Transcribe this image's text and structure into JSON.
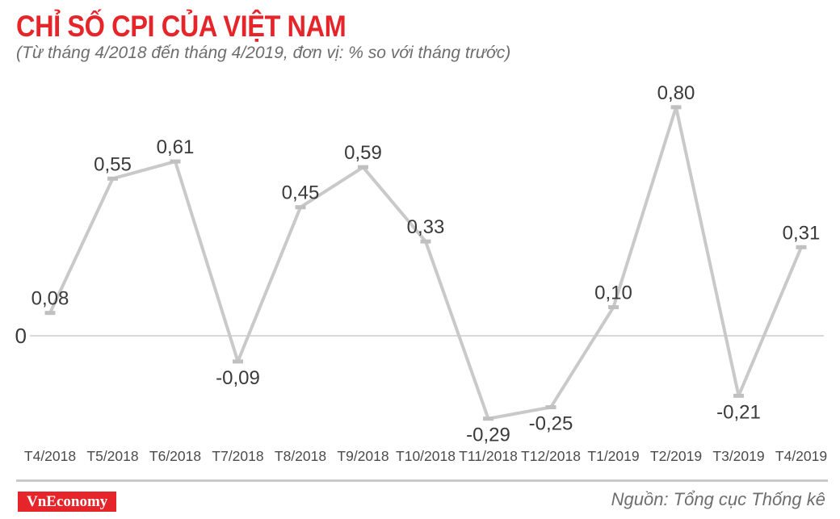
{
  "title": "CHỈ SỐ CPI CỦA VIỆT NAM",
  "subtitle": "(Từ tháng 4/2018 đến tháng 4/2019, đơn vị: % so với tháng trước)",
  "footer": {
    "logo_text": "VnEconomy",
    "source": "Nguồn: Tổng cục Thống kê"
  },
  "colors": {
    "title_red": "#e6252b",
    "logo_red": "#e6252b",
    "line_gray": "#c9c9c9",
    "marker_gray": "#c0c0c0",
    "label_dark": "#3a3a3a",
    "axis_gray": "#4b4b4b",
    "zero_line": "#cccccc",
    "subtitle_gray": "#6d6d6d"
  },
  "chart_data": {
    "type": "line",
    "title": "CHỈ SỐ CPI CỦA VIỆT NAM",
    "subtitle": "(Từ tháng 4/2018 đến tháng 4/2019, đơn vị: % so với tháng trước)",
    "series_name": "CPI % so với tháng trước",
    "categories": [
      "T4/2018",
      "T5/2018",
      "T6/2018",
      "T7/2018",
      "T8/2018",
      "T9/2018",
      "T10/2018",
      "T11/2018",
      "T12/2018",
      "T1/2019",
      "T2/2019",
      "T3/2019",
      "T4/2019"
    ],
    "values": [
      0.08,
      0.55,
      0.61,
      -0.09,
      0.45,
      0.59,
      0.33,
      -0.29,
      -0.25,
      0.1,
      0.8,
      -0.21,
      0.31
    ],
    "value_labels": [
      "0,08",
      "0,55",
      "0,61",
      "-0,09",
      "0,45",
      "0,59",
      "0,33",
      "-0,29",
      "-0,25",
      "0,10",
      "0,80",
      "-0,21",
      "0,31"
    ],
    "zero_axis_label": "0",
    "xlabel": "",
    "ylabel": "",
    "ylim": [
      -0.45,
      0.95
    ],
    "grid": false,
    "legend": false
  }
}
